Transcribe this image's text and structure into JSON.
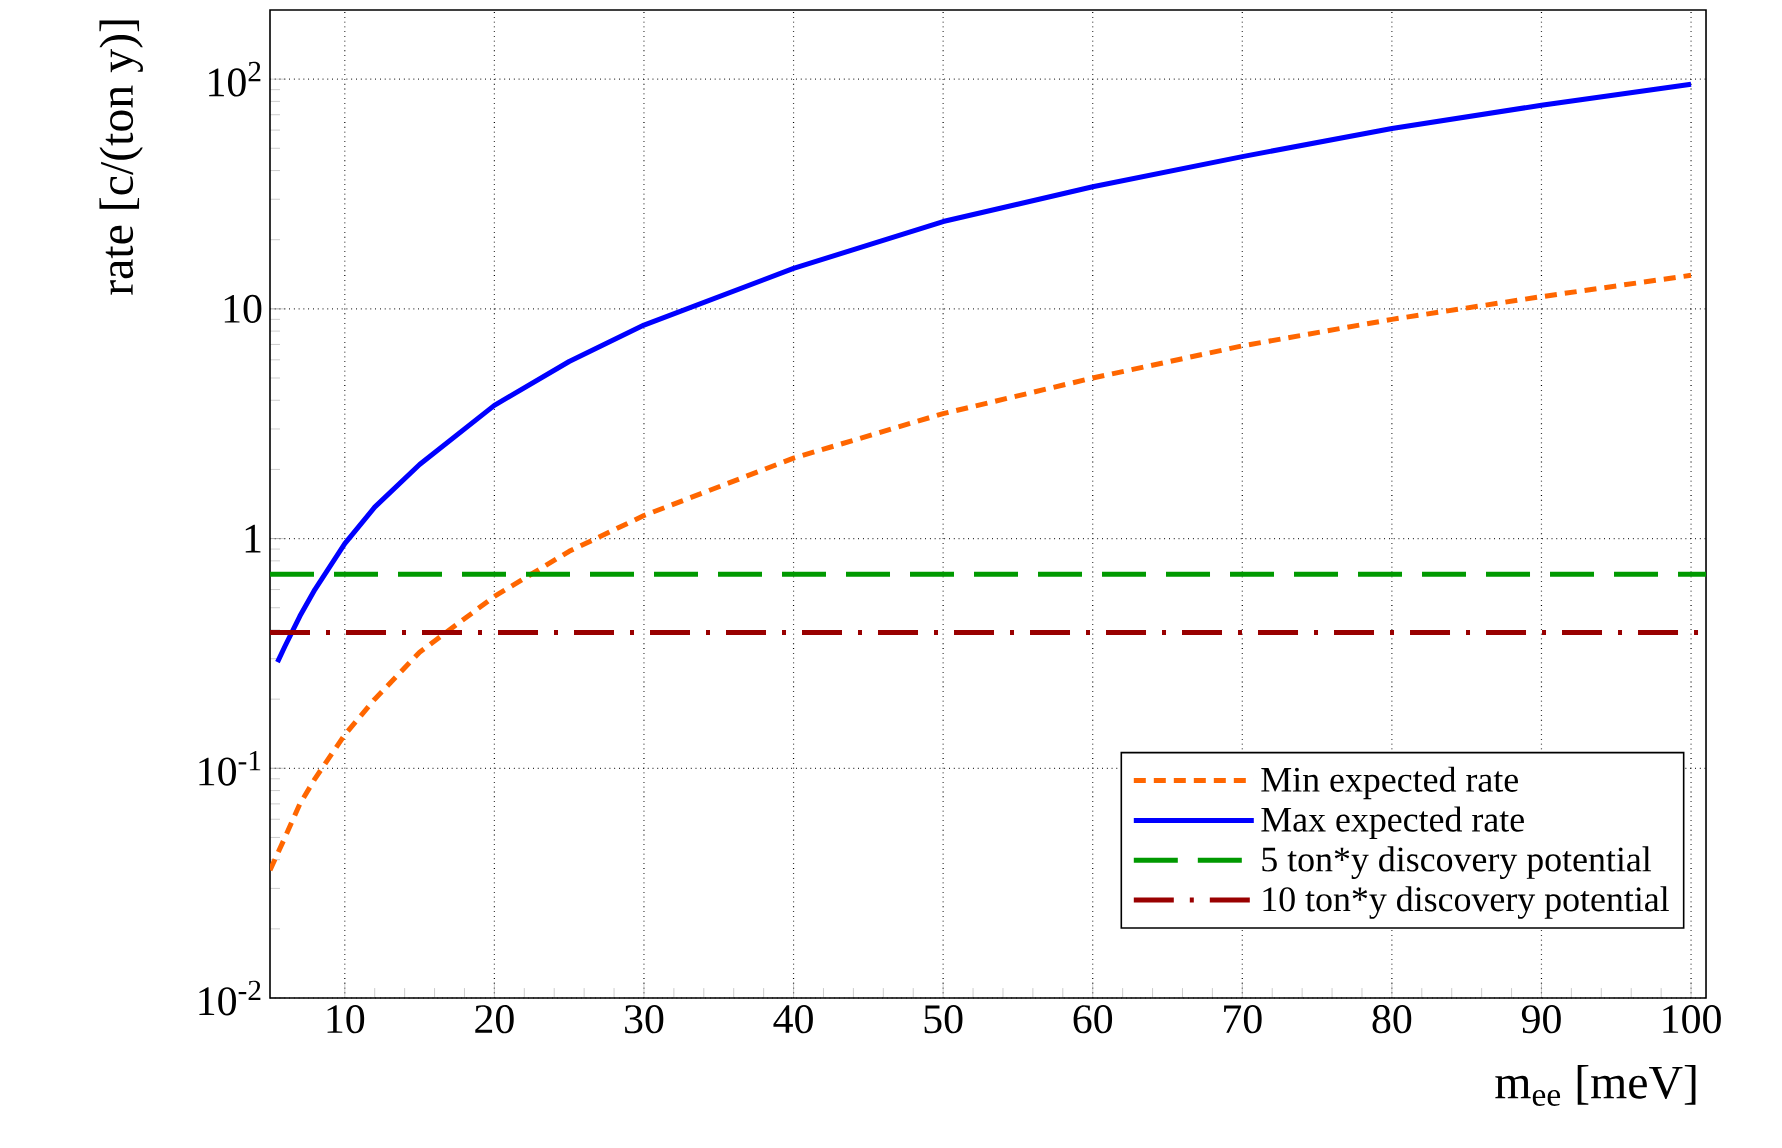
{
  "chart_data": {
    "type": "line",
    "xlabel": "m$_{ee}$ [meV]",
    "ylabel": "rate [c/(ton y)]",
    "x": [
      5,
      6,
      7,
      8,
      10,
      12,
      15,
      20,
      25,
      30,
      40,
      50,
      60,
      70,
      80,
      90,
      100
    ],
    "series": [
      {
        "name": "Min expected rate",
        "color": "#ff6600",
        "line_style": "dashed",
        "values": [
          0.036,
          0.05,
          0.07,
          0.09,
          0.14,
          0.2,
          0.32,
          0.56,
          0.88,
          1.26,
          2.24,
          3.5,
          5.0,
          6.9,
          9.0,
          11.3,
          14
        ]
      },
      {
        "name": "Max expected rate",
        "color": "#0000ff",
        "line_style": "solid",
        "x": [
          5.5,
          6,
          7,
          8,
          10,
          12,
          15,
          20,
          25,
          30,
          40,
          50,
          60,
          70,
          80,
          90,
          100
        ],
        "values": [
          0.29,
          0.34,
          0.46,
          0.6,
          0.95,
          1.37,
          2.1,
          3.8,
          5.9,
          8.5,
          15,
          24,
          34,
          46,
          61,
          77,
          95
        ]
      }
    ],
    "ref_lines": [
      {
        "axis": "y",
        "value": 0.7,
        "label": "5 ton*y discovery potential",
        "color": "#009900",
        "line_style": "dashed"
      },
      {
        "axis": "y",
        "value": 0.39,
        "label": "10 ton*y discovery potential",
        "color": "#990000",
        "line_style": "dashdot"
      }
    ],
    "log": "y",
    "grid": true,
    "legend": "bottom right",
    "xlim": [
      5,
      101
    ],
    "ylim": [
      0.01,
      200
    ],
    "xticks": [
      10,
      20,
      30,
      40,
      50,
      60,
      70,
      80,
      90,
      100
    ],
    "yticks": [
      {
        "value": 0.01,
        "label": "10$^{-2}$"
      },
      {
        "value": 0.1,
        "label": "10$^{-1}$"
      },
      1,
      10,
      {
        "value": 100,
        "label": "10$^{2}$"
      }
    ]
  }
}
